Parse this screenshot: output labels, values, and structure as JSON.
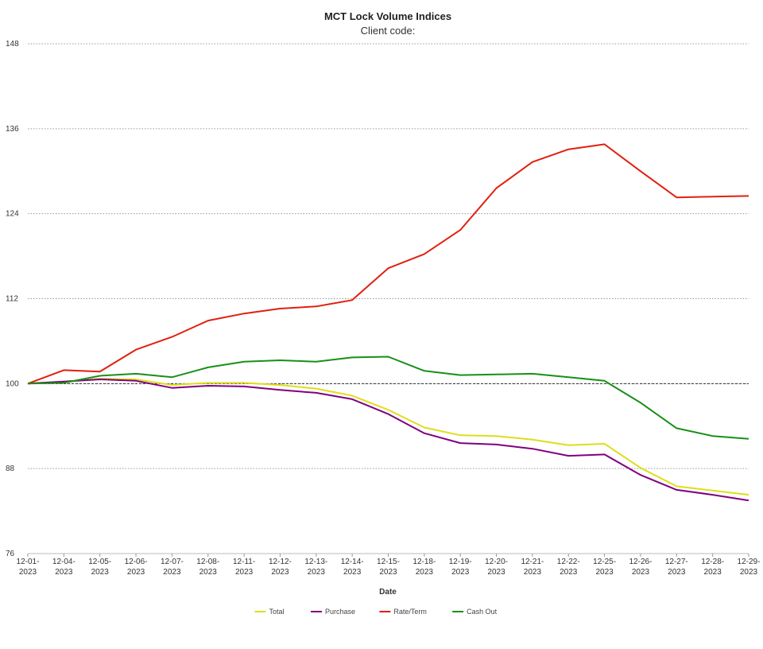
{
  "chart_data": {
    "type": "line",
    "title": "MCT Lock Volume Indices",
    "subtitle": "Client code:",
    "xlabel": "Date",
    "ylabel": "",
    "ylim": [
      76,
      148
    ],
    "yticks": [
      76,
      88,
      100,
      112,
      124,
      136,
      148
    ],
    "grid": true,
    "legend_position": "bottom",
    "reference_line": 100,
    "categories": [
      [
        "12-01-",
        "2023"
      ],
      [
        "12-04-",
        "2023"
      ],
      [
        "12-05-",
        "2023"
      ],
      [
        "12-06-",
        "2023"
      ],
      [
        "12-07-",
        "2023"
      ],
      [
        "12-08-",
        "2023"
      ],
      [
        "12-11-",
        "2023"
      ],
      [
        "12-12-",
        "2023"
      ],
      [
        "12-13-",
        "2023"
      ],
      [
        "12-14-",
        "2023"
      ],
      [
        "12-15-",
        "2023"
      ],
      [
        "12-18-",
        "2023"
      ],
      [
        "12-19-",
        "2023"
      ],
      [
        "12-20-",
        "2023"
      ],
      [
        "12-21-",
        "2023"
      ],
      [
        "12-22-",
        "2023"
      ],
      [
        "12-25-",
        "2023"
      ],
      [
        "12-26-",
        "2023"
      ],
      [
        "12-27-",
        "2023"
      ],
      [
        "12-28-",
        "2023"
      ],
      [
        "12-29-",
        "2023"
      ]
    ],
    "series": [
      {
        "name": "Total",
        "color": "#dede1a",
        "values": [
          100,
          100.3,
          100.7,
          100.6,
          99.8,
          100.1,
          100.1,
          99.8,
          99.3,
          98.3,
          96.3,
          93.8,
          92.7,
          92.6,
          92.1,
          91.3,
          91.5,
          88.1,
          85.5,
          84.9,
          84.3
        ]
      },
      {
        "name": "Purchase",
        "color": "#800080",
        "values": [
          100,
          100.3,
          100.6,
          100.4,
          99.4,
          99.7,
          99.6,
          99.1,
          98.7,
          97.8,
          95.7,
          93.0,
          91.6,
          91.4,
          90.8,
          89.8,
          90.0,
          87.1,
          85.0,
          84.3,
          83.5
        ]
      },
      {
        "name": "Rate/Term",
        "color": "#e02010",
        "values": [
          100,
          101.9,
          101.7,
          104.8,
          106.6,
          108.9,
          109.9,
          110.6,
          110.9,
          111.8,
          116.3,
          118.3,
          121.7,
          127.6,
          131.3,
          133.1,
          133.8,
          130.0,
          126.3,
          126.4,
          126.5
        ]
      },
      {
        "name": "Cash Out",
        "color": "#189018",
        "values": [
          100,
          100.1,
          101.1,
          101.4,
          100.9,
          102.3,
          103.1,
          103.3,
          103.1,
          103.7,
          103.8,
          101.8,
          101.2,
          101.3,
          101.4,
          100.9,
          100.4,
          97.3,
          93.7,
          92.6,
          92.2
        ]
      }
    ]
  }
}
